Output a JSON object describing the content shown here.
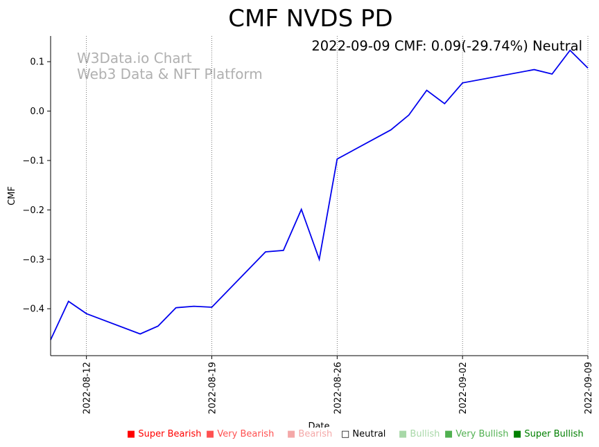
{
  "chart_data": {
    "type": "line",
    "title": "CMF NVDS PD",
    "annotation": "2022-09-09 CMF: 0.09(-29.74%) Neutral",
    "watermark": [
      "W3Data.io Chart",
      "Web3 Data & NFT Platform"
    ],
    "xlabel": "Date",
    "ylabel": "CMF",
    "x_ticks": [
      "2022-08-12",
      "2022-08-19",
      "2022-08-26",
      "2022-09-02",
      "2022-09-09"
    ],
    "y_ticks": [
      "0.1",
      "0.0",
      "−0.1",
      "−0.2",
      "−0.3",
      "−0.4"
    ],
    "ylim": [
      -0.495,
      0.152
    ],
    "series": [
      {
        "name": "CMF",
        "color": "#0000ee",
        "x": [
          "2022-08-10",
          "2022-08-11",
          "2022-08-12",
          "2022-08-15",
          "2022-08-16",
          "2022-08-17",
          "2022-08-18",
          "2022-08-19",
          "2022-08-22",
          "2022-08-23",
          "2022-08-24",
          "2022-08-25",
          "2022-08-26",
          "2022-08-29",
          "2022-08-30",
          "2022-08-31",
          "2022-09-01",
          "2022-09-02",
          "2022-09-06",
          "2022-09-07",
          "2022-09-08",
          "2022-09-09"
        ],
        "values": [
          -0.463,
          -0.385,
          -0.41,
          -0.451,
          -0.435,
          -0.398,
          -0.395,
          -0.397,
          -0.285,
          -0.282,
          -0.199,
          -0.3,
          -0.097,
          -0.038,
          -0.008,
          0.042,
          0.015,
          0.057,
          0.084,
          0.075,
          0.123,
          0.087
        ]
      }
    ]
  },
  "legend": [
    {
      "label": "■ Super Bearish",
      "color": "#ff0000"
    },
    {
      "label": "■ Very Bearish",
      "color": "#ff5050"
    },
    {
      "label": "■ Bearish",
      "color": "#f4a8a8"
    },
    {
      "label": "□ Neutral",
      "color": "#000000"
    },
    {
      "label": "■ Bullish",
      "color": "#a8d8a8"
    },
    {
      "label": "■ Very Bullish",
      "color": "#50b050"
    },
    {
      "label": "■ Super Bullish",
      "color": "#008000"
    }
  ]
}
